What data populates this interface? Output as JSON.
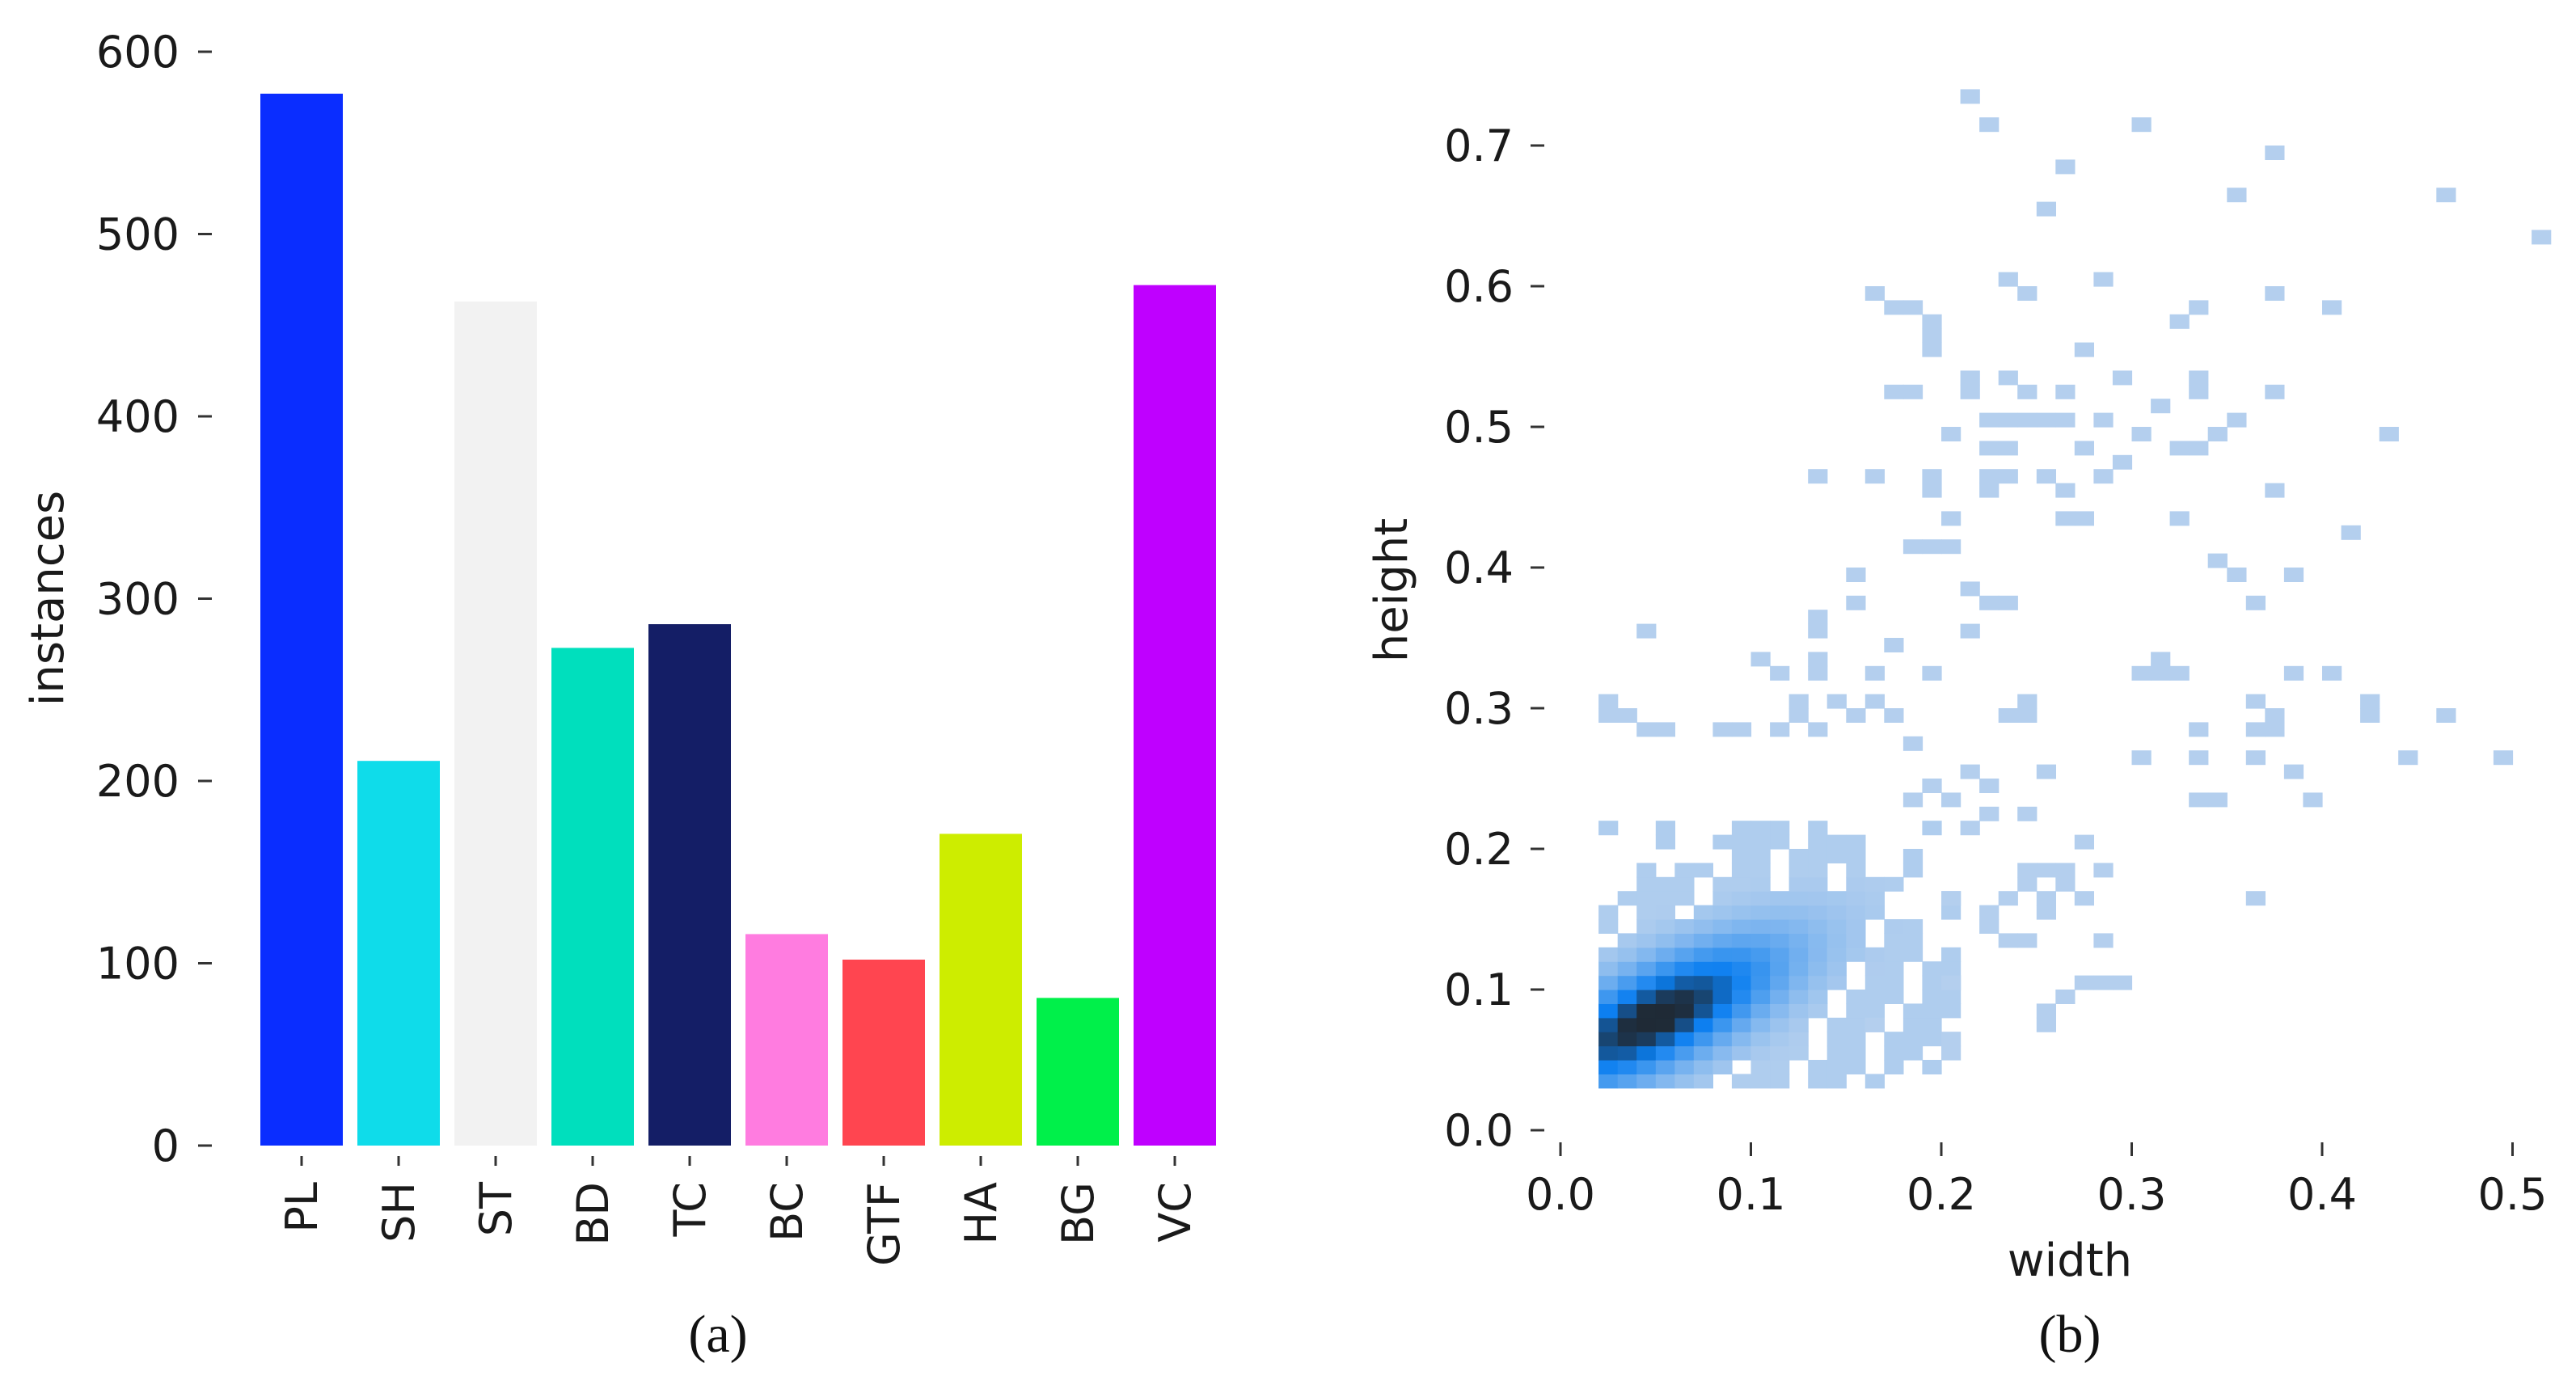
{
  "chart_data": [
    {
      "type": "bar",
      "caption": "(a)",
      "ylabel": "instances",
      "xlabel": "",
      "ylim": [
        0,
        600
      ],
      "yticks": [
        0,
        100,
        200,
        300,
        400,
        500,
        600
      ],
      "categories": [
        "PL",
        "SH",
        "ST",
        "BD",
        "TC",
        "BC",
        "GTF",
        "HA",
        "BG",
        "VC"
      ],
      "values": [
        577,
        211,
        463,
        273,
        286,
        116,
        102,
        171,
        81,
        472
      ],
      "colors": [
        "#0a2dff",
        "#0fdcea",
        "#f2f2f2",
        "#00dfbd",
        "#141e66",
        "#ff7ce0",
        "#ff4550",
        "#cded00",
        "#00f04a",
        "#bf00ff"
      ],
      "grid": false
    },
    {
      "type": "heatmap",
      "caption": "(b)",
      "xlabel": "width",
      "ylabel": "height",
      "xlim": [
        0,
        0.52
      ],
      "ylim": [
        0,
        0.75
      ],
      "xticks": [
        0.0,
        0.1,
        0.2,
        0.3,
        0.4,
        0.5
      ],
      "yticks": [
        0.0,
        0.1,
        0.2,
        0.3,
        0.4,
        0.5,
        0.6,
        0.7
      ],
      "bin_size": [
        0.01,
        0.01
      ],
      "colormap": [
        "#b4cfee",
        "#0a7ef0",
        "#1f2a36"
      ],
      "grid": false,
      "dense_cluster": {
        "x_range": [
          0.02,
          0.21
        ],
        "y_range": [
          0.03,
          0.22
        ],
        "peak": [
          0.05,
          0.08
        ]
      },
      "cells": [
        [
          0.21,
          0.73
        ],
        [
          0.22,
          0.71
        ],
        [
          0.3,
          0.71
        ],
        [
          0.37,
          0.69
        ],
        [
          0.26,
          0.68
        ],
        [
          0.35,
          0.66
        ],
        [
          0.46,
          0.66
        ],
        [
          0.25,
          0.65
        ],
        [
          0.51,
          0.63
        ],
        [
          0.16,
          0.59
        ],
        [
          0.23,
          0.6
        ],
        [
          0.24,
          0.59
        ],
        [
          0.28,
          0.6
        ],
        [
          0.37,
          0.59
        ],
        [
          0.33,
          0.58
        ],
        [
          0.4,
          0.58
        ],
        [
          0.17,
          0.58
        ],
        [
          0.18,
          0.58
        ],
        [
          0.19,
          0.57
        ],
        [
          0.19,
          0.56
        ],
        [
          0.19,
          0.55
        ],
        [
          0.32,
          0.57
        ],
        [
          0.27,
          0.55
        ],
        [
          0.21,
          0.53
        ],
        [
          0.23,
          0.53
        ],
        [
          0.29,
          0.53
        ],
        [
          0.33,
          0.53
        ],
        [
          0.17,
          0.52
        ],
        [
          0.18,
          0.52
        ],
        [
          0.21,
          0.52
        ],
        [
          0.24,
          0.52
        ],
        [
          0.26,
          0.52
        ],
        [
          0.33,
          0.52
        ],
        [
          0.37,
          0.52
        ],
        [
          0.22,
          0.5
        ],
        [
          0.23,
          0.5
        ],
        [
          0.24,
          0.5
        ],
        [
          0.25,
          0.5
        ],
        [
          0.26,
          0.5
        ],
        [
          0.28,
          0.5
        ],
        [
          0.31,
          0.51
        ],
        [
          0.35,
          0.5
        ],
        [
          0.2,
          0.49
        ],
        [
          0.3,
          0.49
        ],
        [
          0.34,
          0.49
        ],
        [
          0.43,
          0.49
        ],
        [
          0.22,
          0.48
        ],
        [
          0.23,
          0.48
        ],
        [
          0.27,
          0.48
        ],
        [
          0.29,
          0.47
        ],
        [
          0.32,
          0.48
        ],
        [
          0.33,
          0.48
        ],
        [
          0.13,
          0.46
        ],
        [
          0.16,
          0.46
        ],
        [
          0.19,
          0.46
        ],
        [
          0.22,
          0.46
        ],
        [
          0.23,
          0.46
        ],
        [
          0.25,
          0.46
        ],
        [
          0.28,
          0.46
        ],
        [
          0.19,
          0.45
        ],
        [
          0.22,
          0.45
        ],
        [
          0.26,
          0.45
        ],
        [
          0.37,
          0.45
        ],
        [
          0.2,
          0.43
        ],
        [
          0.26,
          0.43
        ],
        [
          0.27,
          0.43
        ],
        [
          0.32,
          0.43
        ],
        [
          0.41,
          0.42
        ],
        [
          0.18,
          0.41
        ],
        [
          0.19,
          0.41
        ],
        [
          0.2,
          0.41
        ],
        [
          0.34,
          0.4
        ],
        [
          0.35,
          0.39
        ],
        [
          0.38,
          0.39
        ],
        [
          0.15,
          0.39
        ],
        [
          0.21,
          0.38
        ],
        [
          0.22,
          0.37
        ],
        [
          0.23,
          0.37
        ],
        [
          0.15,
          0.37
        ],
        [
          0.36,
          0.37
        ],
        [
          0.13,
          0.36
        ],
        [
          0.21,
          0.35
        ],
        [
          0.04,
          0.35
        ],
        [
          0.13,
          0.35
        ],
        [
          0.17,
          0.34
        ],
        [
          0.1,
          0.33
        ],
        [
          0.13,
          0.33
        ],
        [
          0.31,
          0.33
        ],
        [
          0.11,
          0.32
        ],
        [
          0.13,
          0.32
        ],
        [
          0.16,
          0.32
        ],
        [
          0.19,
          0.32
        ],
        [
          0.3,
          0.32
        ],
        [
          0.31,
          0.32
        ],
        [
          0.32,
          0.32
        ],
        [
          0.38,
          0.32
        ],
        [
          0.4,
          0.32
        ],
        [
          0.02,
          0.3
        ],
        [
          0.12,
          0.3
        ],
        [
          0.14,
          0.3
        ],
        [
          0.16,
          0.3
        ],
        [
          0.24,
          0.3
        ],
        [
          0.36,
          0.3
        ],
        [
          0.42,
          0.3
        ],
        [
          0.02,
          0.29
        ],
        [
          0.03,
          0.29
        ],
        [
          0.12,
          0.29
        ],
        [
          0.15,
          0.29
        ],
        [
          0.17,
          0.29
        ],
        [
          0.23,
          0.29
        ],
        [
          0.24,
          0.29
        ],
        [
          0.37,
          0.29
        ],
        [
          0.42,
          0.29
        ],
        [
          0.46,
          0.29
        ],
        [
          0.04,
          0.28
        ],
        [
          0.05,
          0.28
        ],
        [
          0.08,
          0.28
        ],
        [
          0.09,
          0.28
        ],
        [
          0.11,
          0.28
        ],
        [
          0.13,
          0.28
        ],
        [
          0.33,
          0.28
        ],
        [
          0.36,
          0.28
        ],
        [
          0.37,
          0.28
        ],
        [
          0.18,
          0.27
        ],
        [
          0.3,
          0.26
        ],
        [
          0.33,
          0.26
        ],
        [
          0.36,
          0.26
        ],
        [
          0.44,
          0.26
        ],
        [
          0.49,
          0.26
        ],
        [
          0.21,
          0.25
        ],
        [
          0.25,
          0.25
        ],
        [
          0.38,
          0.25
        ],
        [
          0.19,
          0.24
        ],
        [
          0.22,
          0.24
        ],
        [
          0.33,
          0.23
        ],
        [
          0.34,
          0.23
        ],
        [
          0.39,
          0.23
        ],
        [
          0.18,
          0.23
        ],
        [
          0.2,
          0.23
        ],
        [
          0.22,
          0.22
        ],
        [
          0.24,
          0.22
        ],
        [
          0.21,
          0.21
        ],
        [
          0.27,
          0.2
        ],
        [
          0.24,
          0.18
        ],
        [
          0.25,
          0.18
        ],
        [
          0.26,
          0.18
        ],
        [
          0.28,
          0.18
        ],
        [
          0.24,
          0.17
        ],
        [
          0.26,
          0.17
        ],
        [
          0.36,
          0.16
        ],
        [
          0.2,
          0.16
        ],
        [
          0.23,
          0.16
        ],
        [
          0.25,
          0.16
        ],
        [
          0.27,
          0.16
        ],
        [
          0.22,
          0.15
        ],
        [
          0.25,
          0.15
        ],
        [
          0.22,
          0.14
        ],
        [
          0.23,
          0.13
        ],
        [
          0.24,
          0.13
        ],
        [
          0.28,
          0.13
        ],
        [
          0.27,
          0.1
        ],
        [
          0.28,
          0.1
        ],
        [
          0.29,
          0.1
        ],
        [
          0.26,
          0.09
        ],
        [
          0.25,
          0.08
        ],
        [
          0.25,
          0.07
        ],
        [
          0.2,
          0.1
        ],
        [
          0.16,
          0.07
        ],
        [
          0.2,
          0.06
        ],
        [
          0.2,
          0.05
        ]
      ]
    }
  ]
}
